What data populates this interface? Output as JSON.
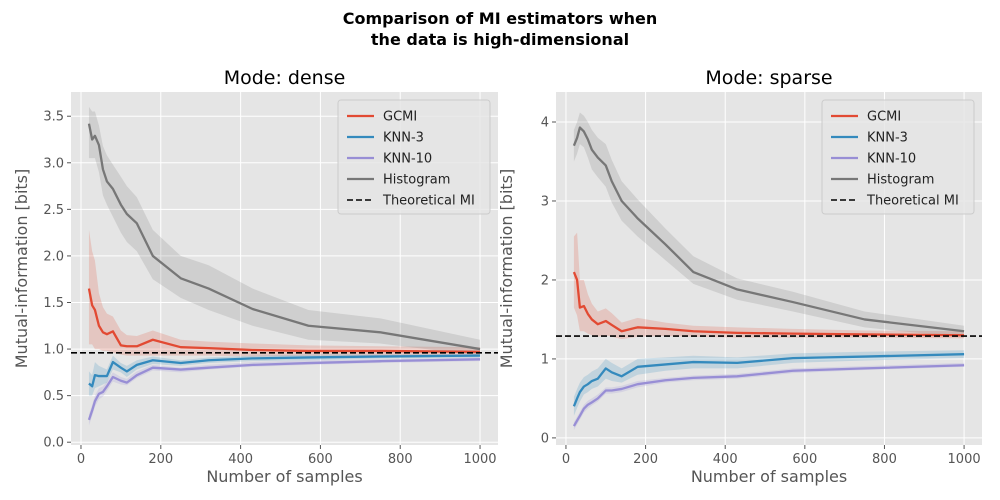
{
  "figure": {
    "suptitle_line1": "Comparison of MI estimators when",
    "suptitle_line2": "the data is high-dimensional"
  },
  "chart_data": [
    {
      "type": "line",
      "title": "Mode: dense",
      "xlabel": "Number of samples",
      "ylabel": "Mutual-information [bits]",
      "xlim": [
        -25,
        1045
      ],
      "ylim": [
        -0.03,
        3.76
      ],
      "xticks": [
        0,
        200,
        400,
        600,
        800,
        1000
      ],
      "yticks": [
        0.0,
        0.5,
        1.0,
        1.5,
        2.0,
        2.5,
        3.0,
        3.5
      ],
      "ytick_labels": [
        "0.0",
        "0.5",
        "1.0",
        "1.5",
        "2.0",
        "2.5",
        "3.0",
        "3.5"
      ],
      "grid": true,
      "legend_position": "top-right",
      "x": [
        20,
        28,
        35,
        45,
        55,
        65,
        80,
        100,
        115,
        140,
        180,
        250,
        320,
        430,
        570,
        750,
        1000
      ],
      "series": [
        {
          "name": "GCMI",
          "color": "#E24A33",
          "values": [
            1.65,
            1.47,
            1.42,
            1.25,
            1.18,
            1.16,
            1.19,
            1.04,
            1.03,
            1.03,
            1.1,
            1.02,
            1.01,
            0.99,
            0.98,
            0.98,
            0.97
          ],
          "lower": [
            1.05,
            1.05,
            1.0,
            1.0,
            0.98,
            0.98,
            0.96,
            0.94,
            0.93,
            0.93,
            0.93,
            0.93,
            0.93,
            0.92,
            0.93,
            0.93,
            0.92
          ],
          "upper": [
            2.28,
            2.05,
            1.95,
            1.6,
            1.45,
            1.38,
            1.35,
            1.2,
            1.15,
            1.14,
            1.2,
            1.1,
            1.08,
            1.06,
            1.04,
            1.03,
            1.02
          ]
        },
        {
          "name": "KNN-3",
          "color": "#348ABD",
          "values": [
            0.63,
            0.6,
            0.72,
            0.71,
            0.71,
            0.71,
            0.86,
            0.8,
            0.76,
            0.83,
            0.88,
            0.85,
            0.88,
            0.9,
            0.91,
            0.92,
            0.93
          ],
          "lower": [
            0.5,
            0.5,
            0.58,
            0.6,
            0.62,
            0.64,
            0.78,
            0.75,
            0.7,
            0.78,
            0.84,
            0.82,
            0.85,
            0.87,
            0.88,
            0.9,
            0.91
          ],
          "upper": [
            0.76,
            0.72,
            0.86,
            0.82,
            0.8,
            0.78,
            0.93,
            0.85,
            0.82,
            0.88,
            0.92,
            0.88,
            0.91,
            0.93,
            0.94,
            0.94,
            0.95
          ]
        },
        {
          "name": "KNN-10",
          "color": "#988ED5",
          "values": [
            0.24,
            0.34,
            0.44,
            0.52,
            0.54,
            0.6,
            0.7,
            0.66,
            0.64,
            0.72,
            0.8,
            0.78,
            0.8,
            0.83,
            0.85,
            0.87,
            0.89
          ],
          "lower": [
            0.18,
            0.28,
            0.38,
            0.46,
            0.49,
            0.55,
            0.65,
            0.62,
            0.61,
            0.69,
            0.77,
            0.75,
            0.78,
            0.81,
            0.83,
            0.85,
            0.87
          ],
          "upper": [
            0.3,
            0.4,
            0.5,
            0.58,
            0.6,
            0.65,
            0.75,
            0.7,
            0.68,
            0.76,
            0.83,
            0.8,
            0.83,
            0.86,
            0.88,
            0.89,
            0.91
          ]
        },
        {
          "name": "Histogram",
          "color": "#777777",
          "values": [
            3.42,
            3.25,
            3.29,
            3.19,
            2.93,
            2.8,
            2.72,
            2.55,
            2.45,
            2.35,
            2.0,
            1.76,
            1.65,
            1.43,
            1.25,
            1.18,
            1.0
          ],
          "lower": [
            3.05,
            3.05,
            3.05,
            2.9,
            2.65,
            2.55,
            2.42,
            2.25,
            2.15,
            2.05,
            1.75,
            1.55,
            1.42,
            1.25,
            1.1,
            1.06,
            0.93
          ],
          "upper": [
            3.6,
            3.55,
            3.55,
            3.4,
            3.18,
            3.08,
            2.98,
            2.85,
            2.75,
            2.63,
            2.28,
            2.0,
            1.9,
            1.65,
            1.42,
            1.33,
            1.1
          ]
        }
      ],
      "reference_line": {
        "name": "Theoretical MI",
        "value": 0.96,
        "color": "#000000",
        "style": "dashed"
      }
    },
    {
      "type": "line",
      "title": "Mode: sparse",
      "xlabel": "Number of samples",
      "ylabel": "Mutual-information [bits]",
      "xlim": [
        -25,
        1045
      ],
      "ylim": [
        -0.09,
        4.38
      ],
      "xticks": [
        0,
        200,
        400,
        600,
        800,
        1000
      ],
      "yticks": [
        0,
        1,
        2,
        3,
        4
      ],
      "ytick_labels": [
        "0",
        "1",
        "2",
        "3",
        "4"
      ],
      "grid": true,
      "legend_position": "top-right",
      "x": [
        20,
        28,
        35,
        45,
        55,
        65,
        80,
        100,
        115,
        140,
        180,
        250,
        320,
        430,
        570,
        750,
        1000
      ],
      "series": [
        {
          "name": "GCMI",
          "color": "#E24A33",
          "values": [
            2.1,
            2.0,
            1.65,
            1.67,
            1.57,
            1.5,
            1.44,
            1.48,
            1.43,
            1.35,
            1.4,
            1.38,
            1.35,
            1.33,
            1.32,
            1.31,
            1.3
          ],
          "lower": [
            1.65,
            1.55,
            1.35,
            1.35,
            1.32,
            1.3,
            1.28,
            1.3,
            1.28,
            1.25,
            1.28,
            1.29,
            1.28,
            1.27,
            1.27,
            1.27,
            1.26
          ],
          "upper": [
            2.55,
            2.6,
            2.0,
            2.0,
            1.82,
            1.7,
            1.6,
            1.64,
            1.58,
            1.46,
            1.52,
            1.46,
            1.42,
            1.4,
            1.38,
            1.36,
            1.35
          ]
        },
        {
          "name": "KNN-3",
          "color": "#348ABD",
          "values": [
            0.4,
            0.5,
            0.58,
            0.65,
            0.68,
            0.72,
            0.75,
            0.88,
            0.83,
            0.78,
            0.9,
            0.93,
            0.96,
            0.95,
            1.01,
            1.03,
            1.06
          ],
          "lower": [
            0.28,
            0.38,
            0.46,
            0.55,
            0.58,
            0.62,
            0.65,
            0.75,
            0.72,
            0.7,
            0.8,
            0.85,
            0.88,
            0.88,
            0.95,
            0.98,
            1.01
          ],
          "upper": [
            0.52,
            0.62,
            0.7,
            0.77,
            0.8,
            0.84,
            0.88,
            1.0,
            0.95,
            0.88,
            1.0,
            1.02,
            1.04,
            1.02,
            1.07,
            1.09,
            1.11
          ]
        },
        {
          "name": "KNN-10",
          "color": "#988ED5",
          "values": [
            0.15,
            0.22,
            0.28,
            0.37,
            0.42,
            0.45,
            0.5,
            0.6,
            0.6,
            0.62,
            0.68,
            0.73,
            0.76,
            0.78,
            0.85,
            0.88,
            0.92
          ],
          "lower": [
            0.1,
            0.17,
            0.23,
            0.32,
            0.37,
            0.41,
            0.46,
            0.56,
            0.56,
            0.58,
            0.64,
            0.7,
            0.73,
            0.75,
            0.82,
            0.86,
            0.9
          ],
          "upper": [
            0.2,
            0.27,
            0.33,
            0.42,
            0.47,
            0.5,
            0.55,
            0.64,
            0.64,
            0.66,
            0.72,
            0.76,
            0.79,
            0.81,
            0.88,
            0.91,
            0.95
          ]
        },
        {
          "name": "Histogram",
          "color": "#777777",
          "values": [
            3.7,
            3.8,
            3.93,
            3.88,
            3.78,
            3.65,
            3.55,
            3.45,
            3.25,
            3.0,
            2.78,
            2.45,
            2.1,
            1.88,
            1.72,
            1.5,
            1.35
          ],
          "lower": [
            3.5,
            3.6,
            3.72,
            3.68,
            3.55,
            3.4,
            3.3,
            3.18,
            2.98,
            2.75,
            2.55,
            2.25,
            1.95,
            1.75,
            1.6,
            1.4,
            1.27
          ],
          "upper": [
            3.9,
            4.0,
            4.12,
            4.08,
            4.0,
            3.9,
            3.8,
            3.72,
            3.52,
            3.25,
            3.02,
            2.65,
            2.3,
            2.02,
            1.85,
            1.6,
            1.42
          ]
        }
      ],
      "reference_line": {
        "name": "Theoretical MI",
        "value": 1.29,
        "color": "#000000",
        "style": "dashed"
      }
    }
  ]
}
